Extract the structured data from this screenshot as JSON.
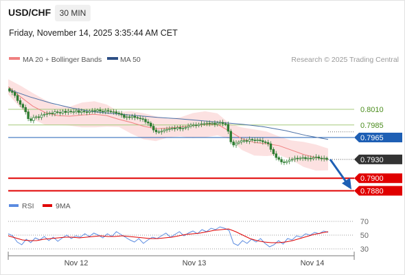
{
  "header": {
    "symbol": "USD/CHF",
    "timeframe": "30 MIN",
    "datetime": "Friday, November 14, 2025 3:35:44 AM CET"
  },
  "legend": {
    "ma20": "MA 20 + Bollinger Bands",
    "ma50": "MA 50",
    "credit": "Research © 2025 Trading Central",
    "rsi": "RSI",
    "ma9": "9MA"
  },
  "colors": {
    "ma20": "#f08080",
    "band_fill": "#fcdcdc",
    "ma50": "#4a6fa5",
    "candle": "#2e7d32",
    "resistance_line": "#a5c97a",
    "resistance_label": "#4a8c1c",
    "pivot": "#1e5fb4",
    "support": "#e00000",
    "last_price": "#333333",
    "rsi": "#5b8be0",
    "rsi_ma": "#e00000",
    "arrow": "#1e5fb4"
  },
  "chart_data": [
    {
      "type": "candlestick",
      "title": "USD/CHF",
      "timeframe": "30 MIN",
      "x_labels": [
        "Nov 12",
        "Nov 13",
        "Nov 14"
      ],
      "ylim": [
        0.7875,
        0.8055
      ],
      "candles_close": [
        0.8039,
        0.8037,
        0.8032,
        0.8024,
        0.8018,
        0.8013,
        0.8006,
        0.7995,
        0.7992,
        0.7997,
        0.7998,
        0.7997,
        0.8001,
        0.8002,
        0.8003,
        0.8004,
        0.8003,
        0.8006,
        0.8005,
        0.8004,
        0.8007,
        0.8005,
        0.8007,
        0.8006,
        0.8006,
        0.8008,
        0.8005,
        0.8007,
        0.8006,
        0.8005,
        0.8007,
        0.8008,
        0.8007,
        0.8009,
        0.8007,
        0.8006,
        0.8008,
        0.8007,
        0.8006,
        0.8006,
        0.8004,
        0.8003,
        0.8001,
        0.7997,
        0.7998,
        0.7997,
        0.7999,
        0.7997,
        0.7996,
        0.7995,
        0.7994,
        0.799,
        0.7988,
        0.7983,
        0.7977,
        0.7974,
        0.7974,
        0.7975,
        0.7977,
        0.7978,
        0.7979,
        0.798,
        0.7979,
        0.7981,
        0.7979,
        0.798,
        0.7981,
        0.7983,
        0.7985,
        0.7985,
        0.7984,
        0.7986,
        0.7987,
        0.7987,
        0.7988,
        0.7987,
        0.7988,
        0.7986,
        0.7988,
        0.7989,
        0.7987,
        0.7986,
        0.7975,
        0.7958,
        0.7953,
        0.7956,
        0.7958,
        0.796,
        0.796,
        0.7959,
        0.7962,
        0.7961,
        0.796,
        0.7961,
        0.796,
        0.7958,
        0.7957,
        0.7955,
        0.7946,
        0.7939,
        0.7933,
        0.793,
        0.7926,
        0.7925,
        0.7927,
        0.7929,
        0.793,
        0.7932,
        0.7931,
        0.7932,
        0.7933,
        0.7931,
        0.7932,
        0.7931,
        0.7933,
        0.7934,
        0.7932,
        0.7931,
        0.7932,
        0.793
      ],
      "ma20_approx": [
        0.8046,
        0.803,
        0.8015,
        0.8005,
        0.8,
        0.7999,
        0.8001,
        0.8002,
        0.8,
        0.7994,
        0.7989,
        0.7983,
        0.7979,
        0.798,
        0.7982,
        0.7984,
        0.7986,
        0.7986,
        0.7975,
        0.7963,
        0.7957,
        0.7955,
        0.7952,
        0.7945,
        0.7938,
        0.7933,
        0.793
      ],
      "ma50_approx": [
        0.8042,
        0.803,
        0.802,
        0.8012,
        0.8006,
        0.8003,
        0.8,
        0.7997,
        0.7995,
        0.7992,
        0.7989,
        0.7986,
        0.7982,
        0.7976,
        0.7968,
        0.7962
      ],
      "levels": [
        {
          "value": 0.801,
          "label": "0.8010",
          "kind": "resistance"
        },
        {
          "value": 0.7985,
          "label": "0.7985",
          "kind": "resistance"
        },
        {
          "value": 0.7965,
          "label": "0.7965",
          "kind": "pivot"
        },
        {
          "value": 0.793,
          "label": "0.7930",
          "kind": "last"
        },
        {
          "value": 0.79,
          "label": "0.7900",
          "kind": "support"
        },
        {
          "value": 0.788,
          "label": "0.7880",
          "kind": "support"
        }
      ],
      "projection": {
        "from": 0.793,
        "to": 0.7882
      }
    },
    {
      "type": "line",
      "series": [
        {
          "name": "RSI",
          "values": [
            52,
            49,
            40,
            36,
            44,
            39,
            46,
            43,
            48,
            42,
            47,
            41,
            46,
            50,
            45,
            49,
            47,
            52,
            48,
            53,
            50,
            46,
            52,
            48,
            55,
            51,
            47,
            43,
            40,
            45,
            38,
            43,
            47,
            45,
            49,
            53,
            47,
            51,
            55,
            49,
            53,
            56,
            52,
            58,
            55,
            60,
            58,
            62,
            60,
            57,
            38,
            35,
            42,
            38,
            44,
            40,
            45,
            38,
            33,
            36,
            42,
            37,
            45,
            43,
            49,
            47,
            52,
            50,
            54,
            52,
            56,
            54
          ]
        },
        {
          "name": "9MA",
          "values": [
            49,
            46,
            43,
            42,
            42,
            44,
            45,
            46,
            47,
            47,
            46,
            47,
            48,
            49,
            48,
            48,
            49,
            48,
            47,
            46,
            45,
            45,
            46,
            47,
            49,
            51,
            52,
            53,
            55,
            57,
            58,
            59,
            55,
            50,
            45,
            42,
            40,
            39,
            39,
            40,
            42,
            45,
            48,
            51,
            53,
            55
          ]
        }
      ],
      "ylim": [
        20,
        80
      ],
      "yticks": [
        70,
        50,
        30
      ]
    }
  ]
}
